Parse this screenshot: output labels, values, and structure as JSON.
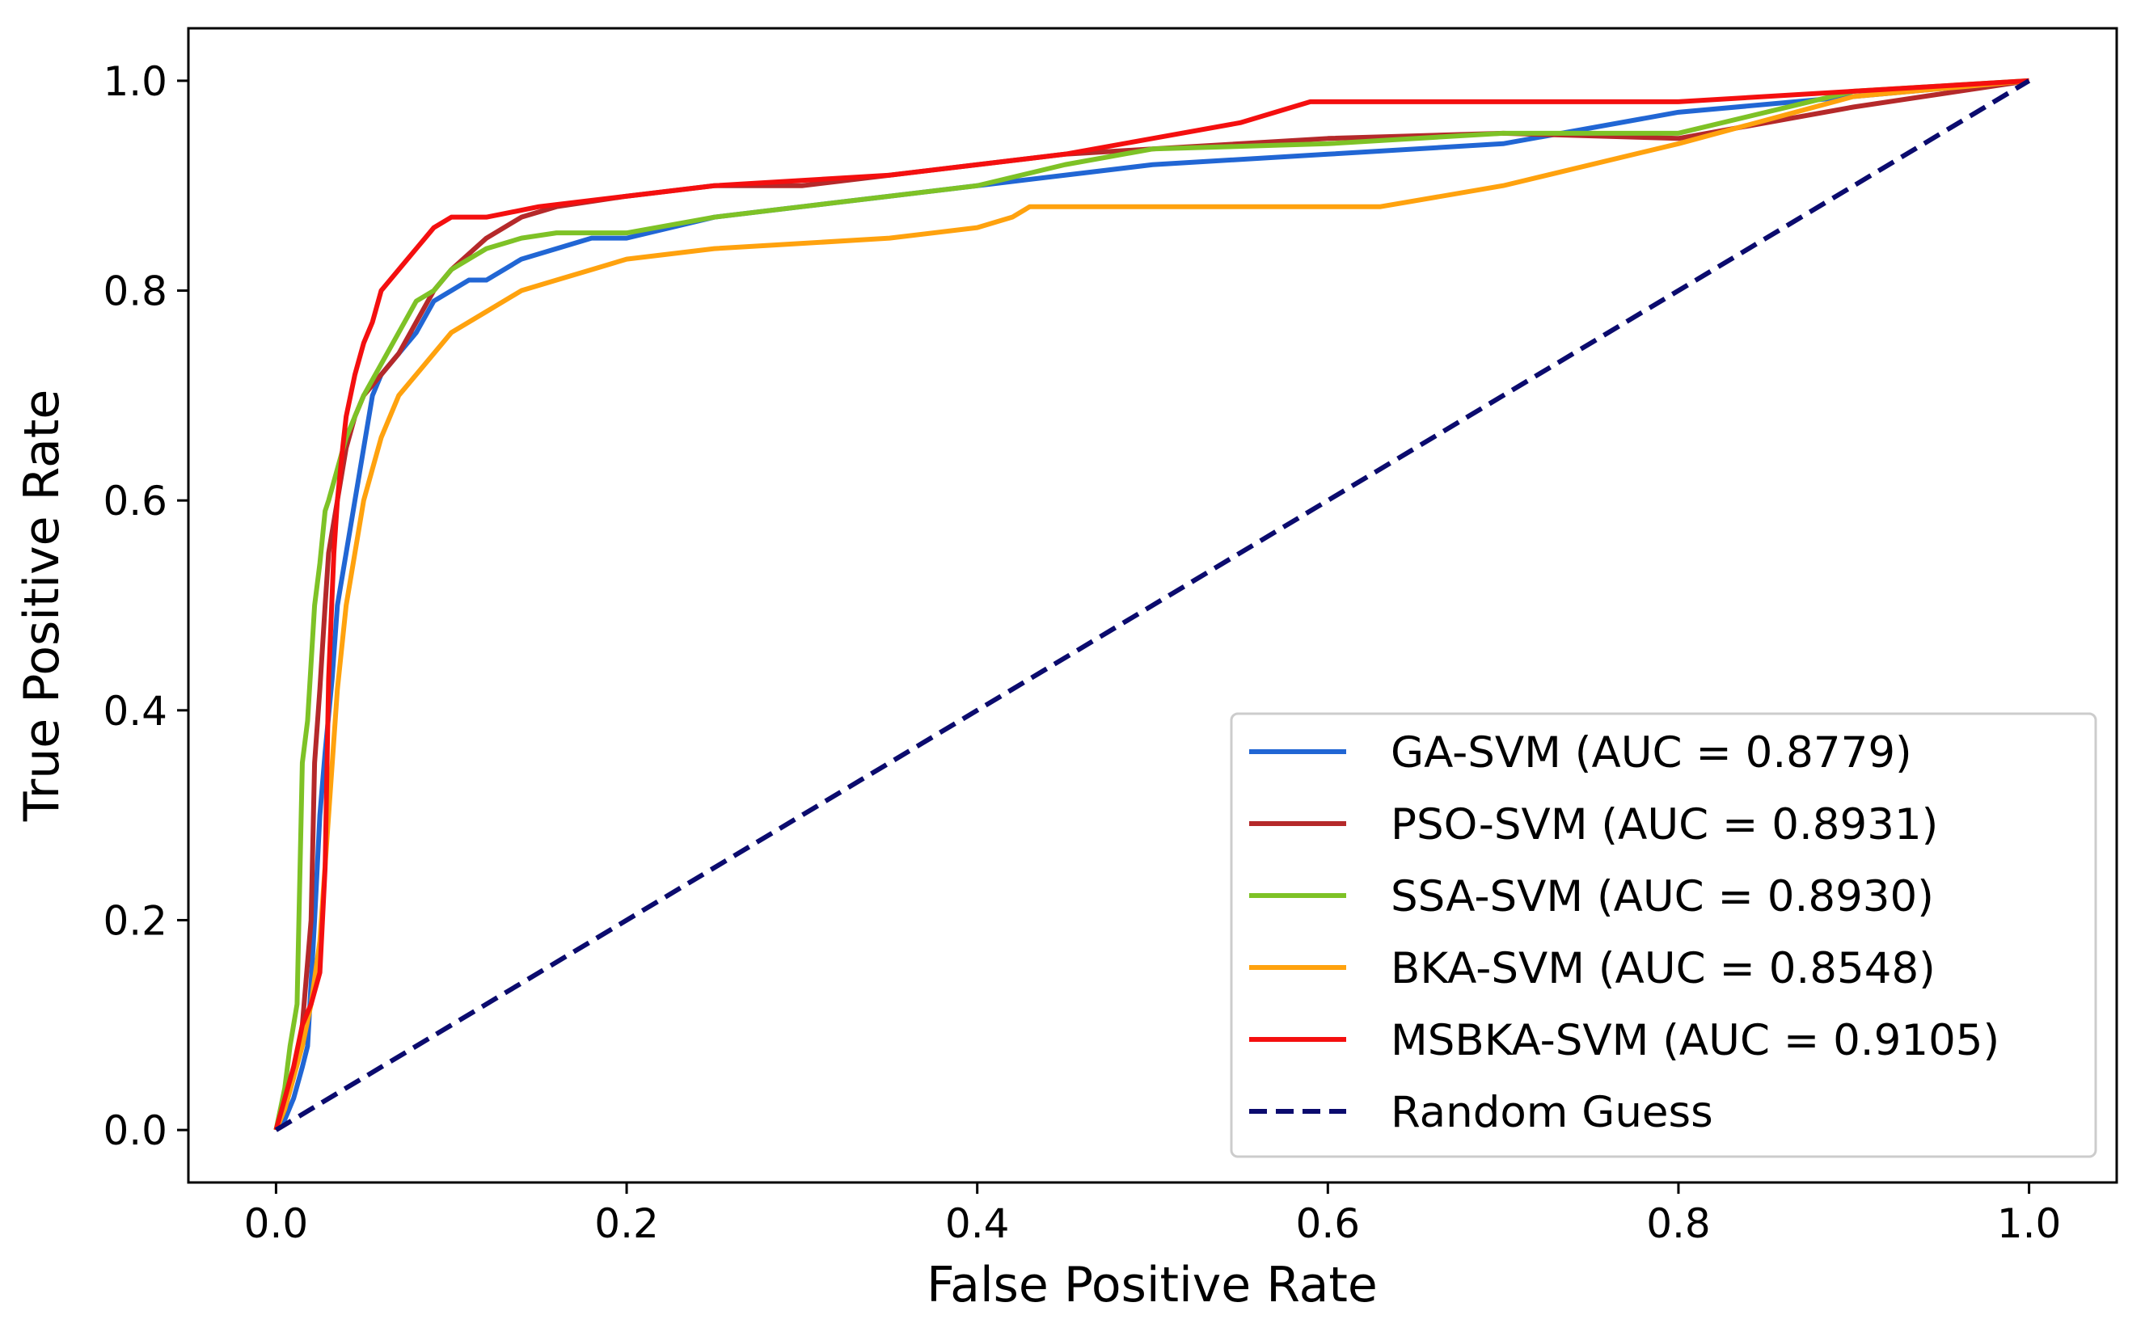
{
  "chart_data": {
    "type": "line",
    "title": "",
    "xlabel": "False Positive Rate",
    "ylabel": "True Positive Rate",
    "xlim": [
      -0.05,
      1.05
    ],
    "ylim": [
      -0.05,
      1.05
    ],
    "grid": false,
    "legend_position": "lower-right",
    "x_ticks": [
      0.0,
      0.2,
      0.4,
      0.6,
      0.8,
      1.0
    ],
    "x_tick_labels": [
      "0.0",
      "0.2",
      "0.4",
      "0.6",
      "0.8",
      "1.0"
    ],
    "y_ticks": [
      0.0,
      0.2,
      0.4,
      0.6,
      0.8,
      1.0
    ],
    "y_tick_labels": [
      "0.0",
      "0.2",
      "0.4",
      "0.6",
      "0.8",
      "1.0"
    ],
    "series": [
      {
        "name": "GA-SVM",
        "label": "GA-SVM (AUC = 0.8779)",
        "auc": 0.8779,
        "color": "#2166d4",
        "dash": "solid",
        "x": [
          0,
          0.005,
          0.01,
          0.015,
          0.018,
          0.022,
          0.025,
          0.028,
          0.032,
          0.035,
          0.04,
          0.045,
          0.05,
          0.055,
          0.06,
          0.07,
          0.08,
          0.09,
          0.1,
          0.11,
          0.12,
          0.14,
          0.16,
          0.18,
          0.2,
          0.25,
          0.3,
          0.35,
          0.4,
          0.45,
          0.5,
          0.6,
          0.7,
          0.8,
          0.9,
          1.0
        ],
        "y": [
          0,
          0.01,
          0.03,
          0.06,
          0.08,
          0.2,
          0.3,
          0.36,
          0.43,
          0.5,
          0.55,
          0.6,
          0.65,
          0.7,
          0.72,
          0.74,
          0.76,
          0.79,
          0.8,
          0.81,
          0.81,
          0.83,
          0.84,
          0.85,
          0.85,
          0.87,
          0.88,
          0.89,
          0.9,
          0.91,
          0.92,
          0.93,
          0.94,
          0.97,
          0.985,
          1.0
        ]
      },
      {
        "name": "PSO-SVM",
        "label": "PSO-SVM (AUC = 0.8931)",
        "auc": 0.8931,
        "color": "#b5292a",
        "dash": "solid",
        "x": [
          0,
          0.005,
          0.01,
          0.015,
          0.02,
          0.022,
          0.025,
          0.028,
          0.03,
          0.035,
          0.04,
          0.045,
          0.05,
          0.06,
          0.07,
          0.08,
          0.09,
          0.1,
          0.12,
          0.14,
          0.16,
          0.2,
          0.25,
          0.3,
          0.35,
          0.4,
          0.45,
          0.5,
          0.6,
          0.7,
          0.8,
          0.9,
          1.0
        ],
        "y": [
          0,
          0.02,
          0.05,
          0.1,
          0.2,
          0.35,
          0.42,
          0.5,
          0.55,
          0.6,
          0.65,
          0.68,
          0.7,
          0.72,
          0.74,
          0.77,
          0.8,
          0.82,
          0.85,
          0.87,
          0.88,
          0.89,
          0.9,
          0.9,
          0.91,
          0.92,
          0.93,
          0.935,
          0.945,
          0.95,
          0.945,
          0.975,
          1.0
        ]
      },
      {
        "name": "SSA-SVM",
        "label": "SSA-SVM (AUC = 0.8930)",
        "auc": 0.893,
        "color": "#7ec226",
        "dash": "solid",
        "x": [
          0,
          0.005,
          0.008,
          0.012,
          0.015,
          0.018,
          0.022,
          0.025,
          0.028,
          0.03,
          0.035,
          0.04,
          0.045,
          0.05,
          0.06,
          0.07,
          0.08,
          0.09,
          0.1,
          0.11,
          0.12,
          0.14,
          0.16,
          0.2,
          0.25,
          0.3,
          0.35,
          0.4,
          0.45,
          0.5,
          0.6,
          0.7,
          0.8,
          0.9,
          1.0
        ],
        "y": [
          0,
          0.04,
          0.08,
          0.12,
          0.35,
          0.39,
          0.5,
          0.54,
          0.59,
          0.6,
          0.63,
          0.66,
          0.68,
          0.7,
          0.73,
          0.76,
          0.79,
          0.8,
          0.82,
          0.83,
          0.84,
          0.85,
          0.855,
          0.855,
          0.87,
          0.88,
          0.89,
          0.9,
          0.92,
          0.935,
          0.94,
          0.95,
          0.95,
          0.99,
          1.0
        ]
      },
      {
        "name": "BKA-SVM",
        "label": "BKA-SVM (AUC = 0.8548)",
        "auc": 0.8548,
        "color": "#ffa20e",
        "dash": "solid",
        "x": [
          0,
          0.005,
          0.01,
          0.015,
          0.02,
          0.025,
          0.03,
          0.035,
          0.04,
          0.045,
          0.05,
          0.055,
          0.06,
          0.07,
          0.08,
          0.09,
          0.1,
          0.12,
          0.14,
          0.16,
          0.18,
          0.2,
          0.25,
          0.3,
          0.35,
          0.4,
          0.42,
          0.43,
          0.5,
          0.6,
          0.63,
          0.7,
          0.8,
          0.9,
          1.0
        ],
        "y": [
          0,
          0.02,
          0.05,
          0.08,
          0.12,
          0.18,
          0.3,
          0.42,
          0.5,
          0.55,
          0.6,
          0.63,
          0.66,
          0.7,
          0.72,
          0.74,
          0.76,
          0.78,
          0.8,
          0.81,
          0.82,
          0.83,
          0.84,
          0.845,
          0.85,
          0.86,
          0.87,
          0.88,
          0.88,
          0.88,
          0.88,
          0.9,
          0.94,
          0.985,
          1.0
        ]
      },
      {
        "name": "MSBKA-SVM",
        "label": "MSBKA-SVM (AUC = 0.9105)",
        "auc": 0.9105,
        "color": "#f40f0f",
        "dash": "solid",
        "x": [
          0,
          0.005,
          0.01,
          0.015,
          0.02,
          0.025,
          0.028,
          0.03,
          0.033,
          0.035,
          0.038,
          0.04,
          0.045,
          0.05,
          0.055,
          0.06,
          0.065,
          0.07,
          0.075,
          0.08,
          0.085,
          0.09,
          0.095,
          0.1,
          0.12,
          0.15,
          0.2,
          0.25,
          0.3,
          0.35,
          0.4,
          0.45,
          0.5,
          0.55,
          0.59,
          0.6,
          0.7,
          0.8,
          0.9,
          1.0
        ],
        "y": [
          0,
          0.03,
          0.06,
          0.1,
          0.12,
          0.15,
          0.25,
          0.43,
          0.55,
          0.6,
          0.65,
          0.68,
          0.72,
          0.75,
          0.77,
          0.8,
          0.81,
          0.82,
          0.83,
          0.84,
          0.85,
          0.86,
          0.865,
          0.87,
          0.87,
          0.88,
          0.89,
          0.9,
          0.905,
          0.91,
          0.92,
          0.93,
          0.945,
          0.96,
          0.98,
          0.98,
          0.98,
          0.98,
          0.99,
          1.0
        ]
      },
      {
        "name": "Random Guess",
        "label": "Random Guess",
        "color": "#0b0b6e",
        "dash": "dashed",
        "x": [
          0,
          1
        ],
        "y": [
          0,
          1
        ]
      }
    ]
  }
}
